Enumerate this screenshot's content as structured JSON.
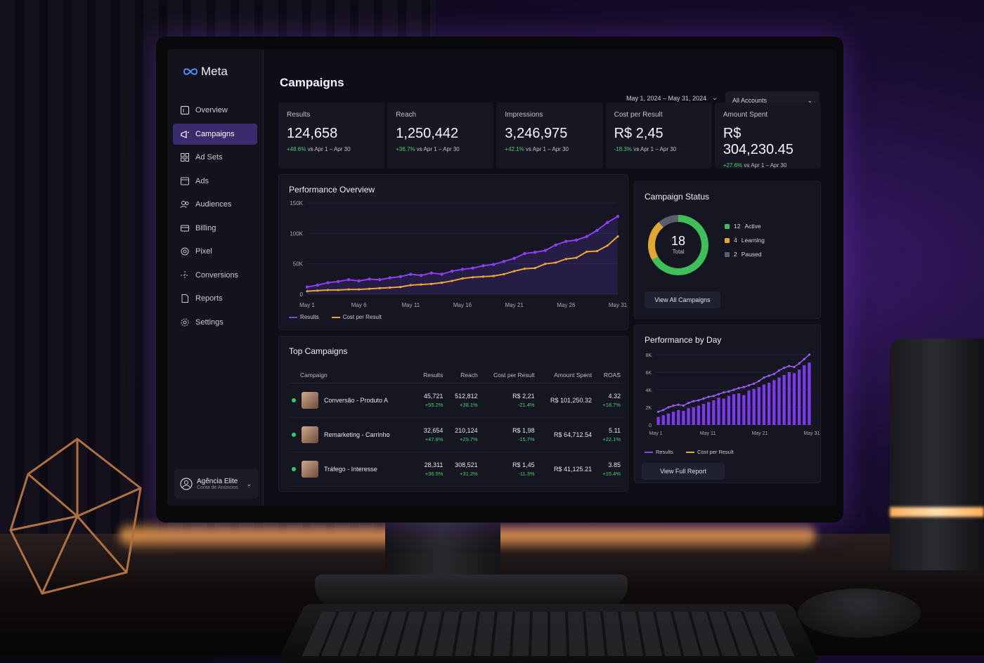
{
  "app": {
    "logo_text": "Meta",
    "page_title": "Campaigns"
  },
  "sidebar": {
    "items": [
      {
        "label": "Overview",
        "icon": "overview-icon"
      },
      {
        "label": "Campaigns",
        "icon": "campaigns-icon",
        "active": true
      },
      {
        "label": "Ad Sets",
        "icon": "grid-icon"
      },
      {
        "label": "Ads",
        "icon": "ads-icon"
      },
      {
        "label": "Audiences",
        "icon": "users-icon"
      },
      {
        "label": "Billing",
        "icon": "billing-icon"
      },
      {
        "label": "Pixel",
        "icon": "pixel-icon"
      },
      {
        "label": "Conversions",
        "icon": "conversions-icon"
      },
      {
        "label": "Reports",
        "icon": "reports-icon"
      },
      {
        "label": "Settings",
        "icon": "gear-icon"
      }
    ],
    "account": {
      "name": "Agência Elite",
      "subtitle": "Conta de Anúncios"
    }
  },
  "header": {
    "date_range": "May 1, 2024 – May 31, 2024",
    "account_select": "All Accounts"
  },
  "kpis": [
    {
      "label": "Results",
      "value": "124,658",
      "delta": "+48.6%",
      "compare": "vs Apr 1 – Apr 30"
    },
    {
      "label": "Reach",
      "value": "1,250,442",
      "delta": "+36.7%",
      "compare": "vs Apr 1 – Apr 30"
    },
    {
      "label": "Impressions",
      "value": "3,246,975",
      "delta": "+42.1%",
      "compare": "vs Apr 1 – Apr 30"
    },
    {
      "label": "Cost per Result",
      "value": "R$ 2,45",
      "delta": "-18.3%",
      "compare": "vs Apr 1 – Apr 30"
    },
    {
      "label": "Amount Spent",
      "value": "R$ 304,230.45",
      "delta": "+27.6%",
      "compare": "vs Apr 1 – Apr 30"
    }
  ],
  "performance_overview": {
    "title": "Performance Overview",
    "y_ticks": [
      "150K",
      "100K",
      "50K",
      "0"
    ],
    "x_ticks": [
      "May 1",
      "May 6",
      "May 11",
      "May 16",
      "May 21",
      "May 26",
      "May 31"
    ],
    "legend": [
      "Results",
      "Cost per Result"
    ]
  },
  "campaign_status": {
    "title": "Campaign Status",
    "total": "18",
    "total_label": "Total",
    "items": [
      {
        "count": "12",
        "label": "Active",
        "color": "#3fbf5a"
      },
      {
        "count": "4",
        "label": "Learning",
        "color": "#e0a830"
      },
      {
        "count": "2",
        "label": "Paused",
        "color": "#5a5d6e"
      }
    ],
    "button": "View All Campaigns"
  },
  "top_campaigns": {
    "title": "Top Campaigns",
    "columns": [
      "Campaign",
      "Results",
      "Reach",
      "Cost per Result",
      "Amount Spent",
      "ROAS"
    ],
    "rows": [
      {
        "name": "Conversão - Produto A",
        "results": "45,721",
        "results_delta": "+55.2%",
        "reach": "512,812",
        "reach_delta": "+38.1%",
        "cpr": "R$ 2,21",
        "cpr_delta": "-21.4%",
        "spent": "R$ 101,250.32",
        "roas": "4.32",
        "roas_delta": "+18.7%"
      },
      {
        "name": "Remarketing - Carrinho",
        "results": "32,654",
        "results_delta": "+47.8%",
        "reach": "210,124",
        "reach_delta": "+29.7%",
        "cpr": "R$ 1,98",
        "cpr_delta": "-15.7%",
        "spent": "R$ 64,712.54",
        "roas": "5.11",
        "roas_delta": "+22.1%"
      },
      {
        "name": "Tráfego - Interesse",
        "results": "28,311",
        "results_delta": "+36.5%",
        "reach": "308,521",
        "reach_delta": "+31.2%",
        "cpr": "R$ 1,45",
        "cpr_delta": "-11.3%",
        "spent": "R$ 41,125.21",
        "roas": "3.85",
        "roas_delta": "+15.4%"
      }
    ]
  },
  "performance_by_day": {
    "title": "Performance by Day",
    "y_ticks": [
      "8K",
      "6K",
      "4K",
      "2K",
      "0"
    ],
    "x_ticks": [
      "May 1",
      "May 11",
      "May 21",
      "May 31"
    ],
    "legend": [
      "Results",
      "Cost per Result"
    ],
    "button": "View Full Report"
  },
  "chart_data": [
    {
      "type": "line",
      "title": "Performance Overview",
      "x": [
        "May 1",
        "May 2",
        "May 3",
        "May 4",
        "May 5",
        "May 6",
        "May 7",
        "May 8",
        "May 9",
        "May 10",
        "May 11",
        "May 12",
        "May 13",
        "May 14",
        "May 15",
        "May 16",
        "May 17",
        "May 18",
        "May 19",
        "May 20",
        "May 21",
        "May 22",
        "May 23",
        "May 24",
        "May 25",
        "May 26",
        "May 27",
        "May 28",
        "May 29",
        "May 30",
        "May 31"
      ],
      "ylim": [
        0,
        150000
      ],
      "series": [
        {
          "name": "Results",
          "color": "#8a3ff0",
          "values": [
            12000,
            15000,
            19000,
            21000,
            24000,
            22000,
            25000,
            24000,
            27000,
            29000,
            33000,
            31000,
            35000,
            33000,
            38000,
            41000,
            43000,
            47000,
            49000,
            54000,
            59000,
            67000,
            69000,
            72000,
            81000,
            87000,
            89000,
            95000,
            105000,
            118000,
            128000
          ]
        },
        {
          "name": "Cost per Result",
          "color": "#e8a838",
          "values": [
            5000,
            6000,
            7000,
            7000,
            8000,
            8000,
            9000,
            10000,
            11000,
            12000,
            15000,
            16000,
            17000,
            19000,
            22000,
            26000,
            28000,
            29000,
            30000,
            33000,
            38000,
            42000,
            43000,
            50000,
            52000,
            58000,
            60000,
            70000,
            71000,
            80000,
            95000
          ]
        }
      ]
    },
    {
      "type": "pie",
      "title": "Campaign Status",
      "categories": [
        "Active",
        "Learning",
        "Paused"
      ],
      "values": [
        12,
        4,
        2
      ]
    },
    {
      "type": "bar",
      "title": "Performance by Day",
      "categories": [
        "May 1",
        "May 2",
        "May 3",
        "May 4",
        "May 5",
        "May 6",
        "May 7",
        "May 8",
        "May 9",
        "May 10",
        "May 11",
        "May 12",
        "May 13",
        "May 14",
        "May 15",
        "May 16",
        "May 17",
        "May 18",
        "May 19",
        "May 20",
        "May 21",
        "May 22",
        "May 23",
        "May 24",
        "May 25",
        "May 26",
        "May 27",
        "May 28",
        "May 29",
        "May 30",
        "May 31"
      ],
      "ylim": [
        0,
        8000
      ],
      "series": [
        {
          "name": "Results",
          "color": "#7c3aed",
          "values": [
            900,
            1100,
            1300,
            1500,
            1700,
            1600,
            1900,
            2000,
            2200,
            2400,
            2600,
            2800,
            3100,
            3000,
            3300,
            3500,
            3600,
            3400,
            3900,
            4100,
            4300,
            4600,
            4800,
            5100,
            5400,
            5700,
            6000,
            5900,
            6300,
            6800,
            7100
          ]
        },
        {
          "name": "Cost per Result",
          "color": "#9b5cf6",
          "values": [
            1500,
            1700,
            2000,
            2200,
            2300,
            2200,
            2500,
            2700,
            2800,
            3000,
            3200,
            3300,
            3500,
            3700,
            3800,
            4000,
            4200,
            4300,
            4500,
            4700,
            5000,
            5400,
            5600,
            5800,
            6200,
            6500,
            6700,
            6600,
            7000,
            7500,
            8000
          ]
        }
      ]
    }
  ]
}
